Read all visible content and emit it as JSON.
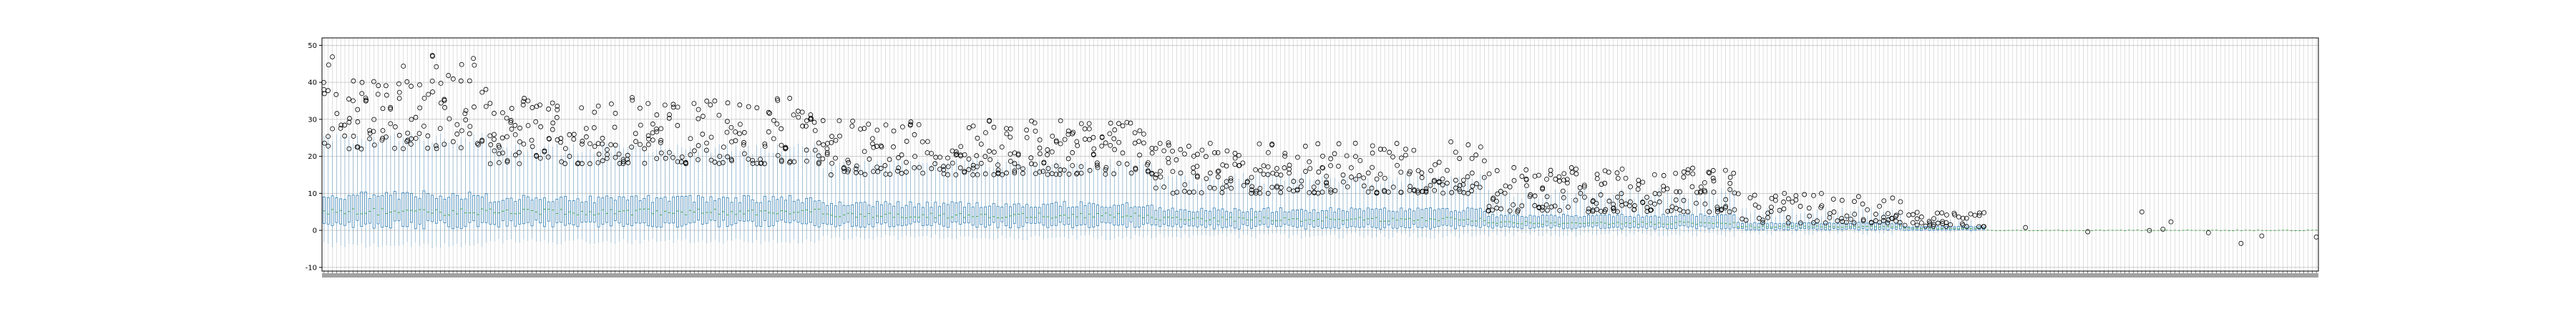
{
  "chart_data": {
    "type": "boxplot",
    "title": "",
    "xlabel": "",
    "ylabel": "",
    "ylim": [
      -11,
      52
    ],
    "yticks": [
      -10,
      0,
      10,
      20,
      30,
      40,
      50
    ],
    "grid": true,
    "legend": "none",
    "n_boxes": 480,
    "x_tick_labels": "dense overlapping category labels, illegible at this resolution",
    "summary_by_segment": [
      {
        "box_range": [
          1,
          40
        ],
        "median": 5,
        "q1": 1.5,
        "q3": 9.5,
        "whisker_low": -4,
        "whisker_high": 25,
        "outliers_range": [
          22,
          48
        ]
      },
      {
        "box_range": [
          41,
          120
        ],
        "median": 5,
        "q1": 1.8,
        "q3": 8.5,
        "whisker_low": -3,
        "whisker_high": 22,
        "outliers_range": [
          18,
          36
        ]
      },
      {
        "box_range": [
          121,
          200
        ],
        "median": 4,
        "q1": 1.5,
        "q3": 7,
        "whisker_low": -2,
        "whisker_high": 18,
        "outliers_range": [
          15,
          30
        ]
      },
      {
        "box_range": [
          201,
          280
        ],
        "median": 3,
        "q1": 1,
        "q3": 5.5,
        "whisker_low": -1.5,
        "whisker_high": 14,
        "outliers_range": [
          10,
          24
        ]
      },
      {
        "box_range": [
          281,
          340
        ],
        "median": 2,
        "q1": 0.8,
        "q3": 4,
        "whisker_low": -1,
        "whisker_high": 10,
        "outliers_range": [
          5,
          17
        ]
      },
      {
        "box_range": [
          341,
          380
        ],
        "median": 1,
        "q1": 0.3,
        "q3": 2,
        "whisker_low": -0.5,
        "whisker_high": 5,
        "outliers_range": [
          2,
          10
        ]
      },
      {
        "box_range": [
          381,
          400
        ],
        "median": 0.5,
        "q1": 0.1,
        "q3": 1,
        "whisker_low": 0,
        "whisker_high": 2,
        "outliers_range": [
          1,
          5
        ]
      },
      {
        "box_range": [
          401,
          480
        ],
        "median": 0,
        "q1": 0,
        "q3": 0,
        "whisker_low": 0,
        "whisker_high": 0,
        "outliers_range": [
          -4,
          6
        ]
      }
    ],
    "colors": {
      "box": "#1f77b4",
      "median": "#2ca02c",
      "whisker": "#1f77b4",
      "outlier": "#000000",
      "grid": "#b0b0b0",
      "axis": "#000000"
    }
  }
}
